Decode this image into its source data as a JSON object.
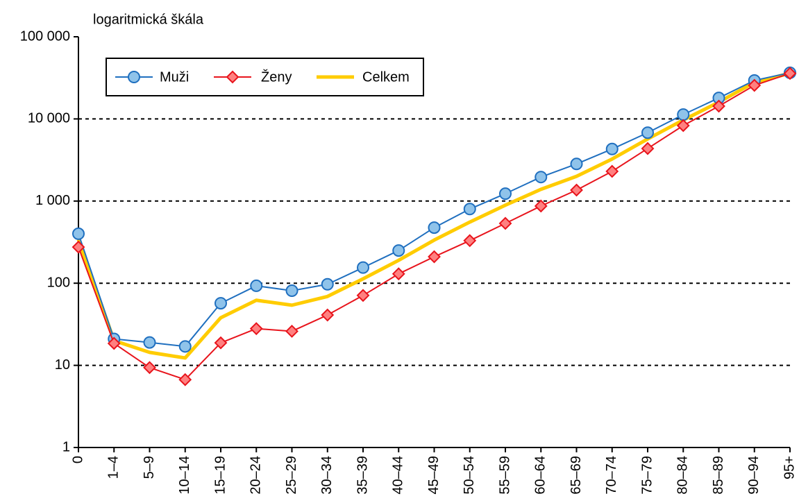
{
  "chart_data": {
    "type": "line",
    "subtitle": "logaritmická škála",
    "categories": [
      "0",
      "1–4",
      "5–9",
      "10–14",
      "15–19",
      "20–24",
      "25–29",
      "30–34",
      "35–39",
      "40–44",
      "45–49",
      "50–54",
      "55–59",
      "60–64",
      "65–69",
      "70–74",
      "75–79",
      "80–84",
      "85–89",
      "90–94",
      "95+"
    ],
    "series": [
      {
        "name": "Muži",
        "color": "#1f6fbf",
        "marker": "circle",
        "marker_color": "#8fc3ea",
        "values": [
          400,
          21,
          19,
          17,
          57,
          93,
          81,
          97,
          155,
          250,
          475,
          800,
          1230,
          1960,
          2830,
          4300,
          6800,
          11300,
          18000,
          29400,
          36500
        ]
      },
      {
        "name": "Ženy",
        "color": "#e8141c",
        "marker": "diamond",
        "marker_color": "#ff8080",
        "values": [
          275,
          18.5,
          9.4,
          6.7,
          18.8,
          28,
          26,
          41,
          71,
          130,
          210,
          330,
          535,
          870,
          1360,
          2300,
          4360,
          8300,
          14300,
          25600,
          35800
        ]
      },
      {
        "name": "Celkem",
        "color": "#ffcc00",
        "marker": "none",
        "values": [
          340,
          20,
          14.4,
          12.3,
          38,
          62,
          54,
          69,
          113,
          190,
          335,
          555,
          890,
          1390,
          2000,
          3250,
          5700,
          9700,
          16000,
          27800,
          36000
        ]
      }
    ],
    "ylim": [
      1,
      100000
    ],
    "ylog": true,
    "yticks": [
      1,
      10,
      100,
      {
        "value": 1000,
        "label": "1 000"
      },
      {
        "value": 10000,
        "label": "10 000"
      },
      {
        "value": 100000,
        "label": "100 000"
      }
    ],
    "grid": true,
    "legend": "upper left"
  }
}
